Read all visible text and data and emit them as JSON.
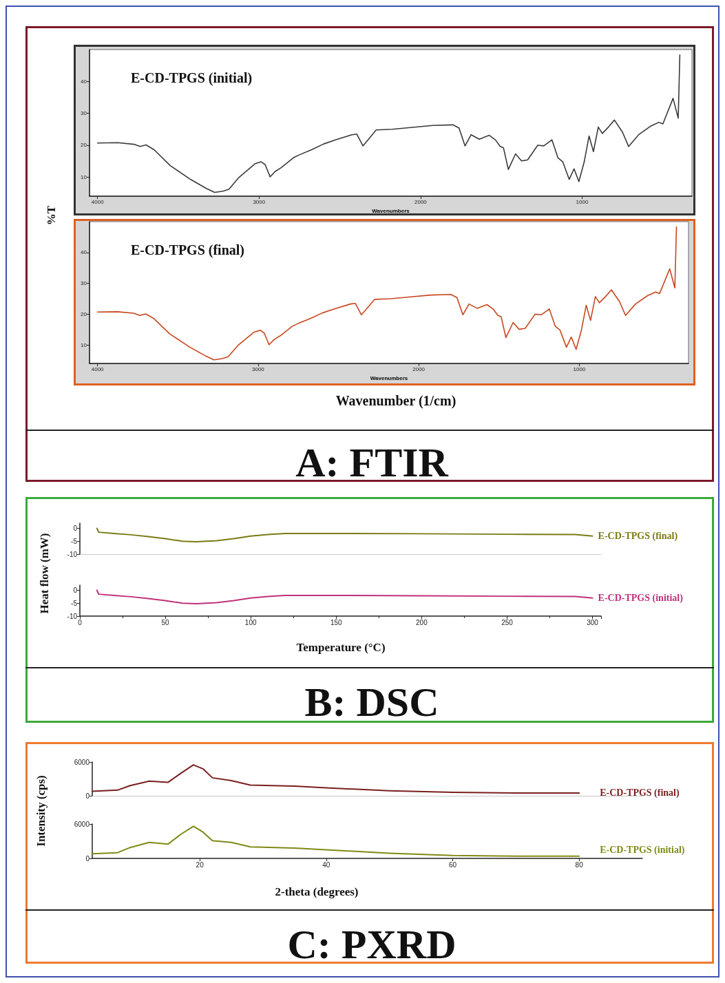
{
  "chart_data": [
    {
      "type": "line",
      "xlabel": "Wavenumbers",
      "ylabel": "%T",
      "xlim": [
        4050,
        320
      ],
      "xticks": [
        4000,
        3000,
        2000,
        1000
      ],
      "ylim": [
        4,
        50
      ],
      "yticks": [
        10,
        20,
        30,
        40
      ],
      "grid": false,
      "marker": "none",
      "line_style": "solid",
      "series": [
        {
          "name": "E-CD-TPGS (initial)",
          "color": "#3a3a3a",
          "x": [
            4000,
            3875,
            3775,
            3737,
            3700,
            3650,
            3550,
            3425,
            3325,
            3275,
            3225,
            3187,
            3125,
            3025,
            2987,
            2962,
            2932,
            2900,
            2862,
            2787,
            2750,
            2675,
            2600,
            2525,
            2425,
            2395,
            2357,
            2325,
            2275,
            2175,
            2050,
            1925,
            1800,
            1762,
            1725,
            1687,
            1637,
            1575,
            1537,
            1507,
            1487,
            1457,
            1412,
            1375,
            1337,
            1275,
            1237,
            1187,
            1150,
            1120,
            1080,
            1050,
            1020,
            987,
            957,
            930,
            900,
            875,
            837,
            800,
            750,
            712,
            650,
            575,
            525,
            500,
            437,
            405,
            395
          ],
          "values": [
            20.7,
            20.8,
            20.3,
            19.6,
            20.1,
            18.6,
            13.6,
            9.3,
            6.4,
            5.2,
            5.6,
            6.2,
            9.9,
            14.2,
            14.8,
            13.9,
            10.1,
            11.8,
            13.0,
            16.1,
            17.0,
            18.6,
            20.4,
            21.7,
            23.3,
            23.5,
            19.8,
            21.7,
            24.8,
            25.0,
            25.6,
            26.2,
            26.4,
            25.4,
            19.8,
            23.3,
            21.9,
            23.1,
            21.7,
            19.6,
            19.2,
            12.4,
            17.3,
            15.1,
            15.4,
            20.0,
            19.8,
            21.7,
            16.1,
            14.8,
            9.3,
            12.6,
            8.6,
            14.8,
            22.9,
            18.0,
            25.7,
            23.7,
            25.7,
            27.9,
            24.1,
            19.6,
            23.3,
            26.0,
            27.2,
            26.7,
            34.7,
            28.5,
            48.3
          ]
        }
      ]
    },
    {
      "type": "line",
      "title": "A: FTIR",
      "xlabel": "Wavenumbers",
      "annotations": [
        "Wavenumber (1/cm)"
      ],
      "xlim": [
        4050,
        320
      ],
      "xticks": [
        4000,
        3000,
        2000,
        1000
      ],
      "ylim": [
        4,
        50
      ],
      "yticks": [
        10,
        20,
        30,
        40
      ],
      "grid": false,
      "marker": "none",
      "line_style": "solid",
      "series": [
        {
          "name": "E-CD-TPGS (final)",
          "color": "#c8461e",
          "x": [
            4000,
            3875,
            3775,
            3737,
            3700,
            3650,
            3550,
            3425,
            3325,
            3275,
            3225,
            3187,
            3125,
            3025,
            2987,
            2962,
            2932,
            2900,
            2862,
            2787,
            2750,
            2675,
            2600,
            2525,
            2425,
            2395,
            2357,
            2325,
            2275,
            2175,
            2050,
            1925,
            1800,
            1762,
            1725,
            1687,
            1637,
            1575,
            1537,
            1507,
            1487,
            1457,
            1412,
            1375,
            1337,
            1275,
            1237,
            1187,
            1150,
            1120,
            1080,
            1050,
            1020,
            987,
            957,
            930,
            900,
            875,
            837,
            800,
            750,
            712,
            650,
            575,
            525,
            500,
            437,
            405,
            395
          ],
          "values": [
            20.7,
            20.8,
            20.3,
            19.6,
            20.1,
            18.6,
            13.6,
            9.3,
            6.4,
            5.2,
            5.6,
            6.2,
            9.9,
            14.2,
            14.8,
            13.9,
            10.1,
            11.8,
            13.0,
            16.1,
            17.0,
            18.6,
            20.4,
            21.7,
            23.3,
            23.5,
            19.8,
            21.7,
            24.8,
            25.0,
            25.6,
            26.2,
            26.4,
            25.4,
            19.8,
            23.3,
            21.9,
            23.1,
            21.7,
            19.6,
            19.2,
            12.4,
            17.3,
            15.1,
            15.4,
            20.0,
            19.8,
            21.7,
            16.1,
            14.8,
            9.3,
            12.6,
            8.6,
            14.8,
            22.9,
            18.0,
            25.7,
            23.7,
            25.7,
            27.9,
            24.1,
            19.6,
            23.3,
            26.0,
            27.2,
            26.7,
            34.7,
            28.5,
            48.3
          ]
        }
      ]
    },
    {
      "type": "line",
      "ylabel": "Heat flow (mW)",
      "xlim": [
        0,
        305
      ],
      "ylim": [
        -10,
        2
      ],
      "yticks": [
        0,
        -5,
        -10
      ],
      "tick_labels": "y",
      "grid": false,
      "marker": "none",
      "line_style": "solid",
      "series": [
        {
          "name": "E-CD-TPGS (final)",
          "color": "#7a7a14",
          "x": [
            10,
            11,
            20,
            30,
            40,
            50,
            60,
            68,
            80,
            90,
            100,
            110,
            120,
            150,
            200,
            250,
            290,
            300
          ],
          "values": [
            0,
            -1.5,
            -2,
            -2.5,
            -3.2,
            -4,
            -5,
            -5.2,
            -4.8,
            -4,
            -3,
            -2.4,
            -2,
            -2,
            -2.1,
            -2.3,
            -2.4,
            -3
          ]
        }
      ]
    },
    {
      "type": "line",
      "title": "B: DSC",
      "xlabel": "Temperature (°C)",
      "xlim": [
        0,
        305
      ],
      "xticks": [
        0,
        50,
        100,
        150,
        200,
        250,
        300
      ],
      "ylim": [
        -10,
        2
      ],
      "yticks": [
        0,
        -5,
        -10
      ],
      "grid": false,
      "marker": "none",
      "line_style": "solid",
      "series": [
        {
          "name": "E-CD-TPGS (initial)",
          "color": "#c0307a",
          "x": [
            10,
            11,
            20,
            30,
            40,
            50,
            60,
            68,
            80,
            90,
            100,
            110,
            120,
            150,
            200,
            250,
            290,
            300
          ],
          "values": [
            0,
            -1.5,
            -2,
            -2.5,
            -3.2,
            -4,
            -5,
            -5.2,
            -4.8,
            -4,
            -3,
            -2.4,
            -2,
            -2,
            -2.1,
            -2.3,
            -2.4,
            -3
          ]
        }
      ]
    },
    {
      "type": "line",
      "ylabel": "Intensity (cps)",
      "xlim": [
        3,
        90
      ],
      "ylim": [
        0,
        6000
      ],
      "yticks": [
        0,
        6000
      ],
      "tick_labels": "y",
      "grid": false,
      "marker": "none",
      "line_style": "solid",
      "series": [
        {
          "name": "E-CD-TPGS (final)",
          "color": "#7a1e1e",
          "x": [
            3,
            7,
            9,
            12,
            15,
            17,
            19,
            20.5,
            22,
            25,
            28,
            35,
            40,
            50,
            60,
            70,
            80
          ],
          "values": [
            800,
            1000,
            1800,
            2600,
            2400,
            4000,
            5500,
            4800,
            3200,
            2700,
            1900,
            1700,
            1400,
            900,
            600,
            500,
            500
          ]
        }
      ]
    },
    {
      "type": "line",
      "title": "C: PXRD",
      "xlabel": "2-theta (degrees)",
      "xlim": [
        3,
        90
      ],
      "xticks": [
        20,
        40,
        60,
        80
      ],
      "ylim": [
        0,
        6000
      ],
      "yticks": [
        0,
        6000
      ],
      "grid": false,
      "marker": "none",
      "line_style": "solid",
      "series": [
        {
          "name": "E-CD-TPGS (initial)",
          "color": "#7f8a14",
          "x": [
            3,
            7,
            9,
            12,
            15,
            17,
            19,
            20.5,
            22,
            25,
            28,
            35,
            40,
            50,
            60,
            70,
            80
          ],
          "values": [
            800,
            1000,
            1900,
            2800,
            2500,
            4200,
            5600,
            4600,
            3100,
            2800,
            2000,
            1800,
            1500,
            900,
            500,
            400,
            400
          ]
        }
      ]
    }
  ]
}
